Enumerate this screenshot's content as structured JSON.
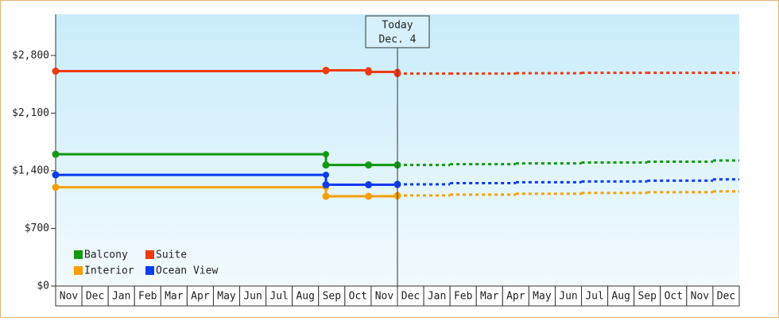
{
  "chart_data": {
    "type": "step",
    "categories": [
      "Nov",
      "Dec",
      "Jan",
      "Feb",
      "Mar",
      "Apr",
      "May",
      "Jun",
      "Jul",
      "Aug",
      "Sep",
      "Oct",
      "Nov",
      "Dec",
      "Jan",
      "Feb",
      "Mar",
      "Apr",
      "May",
      "Jun",
      "Jul",
      "Aug",
      "Sep",
      "Oct",
      "Nov",
      "Dec"
    ],
    "xlim": [
      0,
      26
    ],
    "x": [
      0,
      10.28,
      11.9,
      13.0
    ],
    "forecast_x": [
      13.0,
      15,
      17.5,
      20,
      22.5,
      25
    ],
    "series": [
      {
        "name": "Balcony",
        "color": "#119911",
        "values": [
          1600,
          1470,
          1470,
          1470
        ],
        "forecast_values": [
          1470,
          1480,
          1490,
          1500,
          1510,
          1525
        ]
      },
      {
        "name": "Suite",
        "color": "#ee3a10",
        "values": [
          2610,
          2620,
          2600,
          2580
        ],
        "forecast_values": [
          2580,
          2580,
          2585,
          2590,
          2590,
          2590
        ]
      },
      {
        "name": "Interior",
        "color": "#f5a000",
        "values": [
          1200,
          1090,
          1090,
          1100
        ],
        "forecast_values": [
          1100,
          1110,
          1120,
          1130,
          1140,
          1150
        ]
      },
      {
        "name": "Ocean View",
        "color": "#0a3cf0",
        "values": [
          1350,
          1230,
          1230,
          1235
        ],
        "forecast_values": [
          1235,
          1250,
          1260,
          1270,
          1280,
          1295
        ]
      }
    ],
    "ylim": [
      0,
      3300
    ],
    "yticks": [
      {
        "value": 0,
        "label": "$0"
      },
      {
        "value": 700,
        "label": "$700"
      },
      {
        "value": 1400,
        "label": "$1,400"
      },
      {
        "value": 2100,
        "label": "$2,100"
      },
      {
        "value": 2800,
        "label": "$2,800"
      }
    ],
    "annotation": {
      "x": 13.0,
      "lines": [
        "Today",
        "Dec. 4"
      ]
    },
    "legend": "lower-left"
  }
}
